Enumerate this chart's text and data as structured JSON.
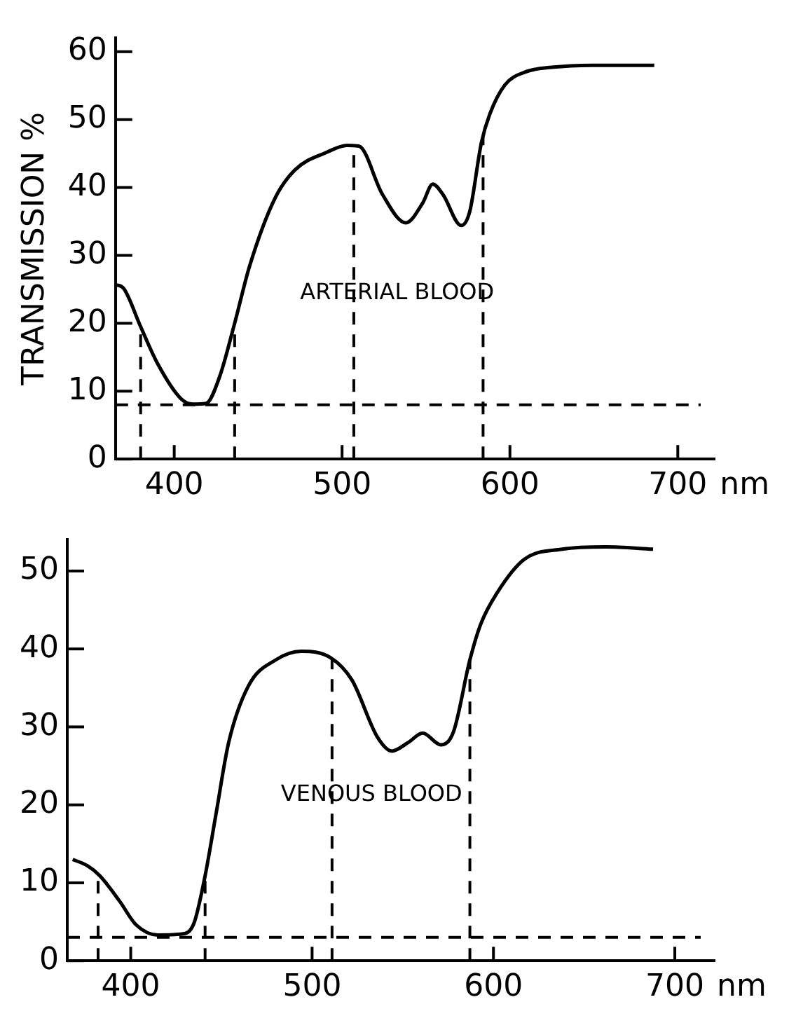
{
  "chart_data": [
    {
      "type": "line",
      "ylabel": "TRANSMISSION %",
      "xlabel": "nm",
      "annotations": [
        "ARTERIAL BLOOD"
      ],
      "marker": "none",
      "line_style": "solid",
      "color": "#000000",
      "legend": false,
      "x": [
        365,
        370,
        380,
        390,
        404,
        411,
        419,
        427,
        436,
        445,
        460,
        472,
        491,
        503,
        510,
        524,
        538,
        548,
        554,
        560,
        571,
        576,
        583,
        588,
        597,
        609,
        625,
        649,
        686
      ],
      "values": [
        25.7,
        25.1,
        19.5,
        14.1,
        8.9,
        8.1,
        8.2,
        12.1,
        20,
        28.5,
        38.4,
        42.6,
        45.2,
        46.2,
        46.1,
        39,
        34.8,
        37.7,
        40.5,
        39,
        34.4,
        36.4,
        46.6,
        50.8,
        55.1,
        57,
        57.7,
        58,
        58
      ],
      "xlim": [
        365,
        722
      ],
      "xticks": [
        400,
        500,
        600,
        700
      ],
      "ylim": [
        0,
        62
      ],
      "yticks": [
        0,
        10,
        20,
        30,
        40,
        50,
        60
      ],
      "ref_lines": [
        {
          "axis": "x",
          "value": 380,
          "color": "#000000",
          "line_style": "dashed"
        },
        {
          "axis": "x",
          "value": 436,
          "color": "#000000",
          "line_style": "dashed"
        },
        {
          "axis": "x",
          "value": 507,
          "color": "#000000",
          "line_style": "dashed"
        },
        {
          "axis": "x",
          "value": 584,
          "color": "#000000",
          "line_style": "dashed"
        },
        {
          "axis": "y",
          "value": 8,
          "color": "#000000",
          "line_style": "dashed"
        }
      ]
    },
    {
      "type": "line",
      "xlabel": "nm",
      "annotations": [
        "VENOUS BLOOD"
      ],
      "marker": "none",
      "line_style": "solid",
      "color": "#000000",
      "legend": false,
      "x": [
        368,
        376,
        383,
        394,
        403,
        415,
        430,
        435,
        441,
        447,
        454,
        465,
        480,
        494,
        510,
        522,
        536,
        544,
        553,
        561,
        571,
        578,
        587,
        593,
        602,
        617,
        638,
        662,
        688
      ],
      "values": [
        13,
        12.2,
        10.9,
        7.6,
        4.6,
        3.3,
        3.5,
        4.9,
        10.9,
        18.8,
        28,
        35.3,
        38.6,
        39.7,
        38.9,
        36,
        28.7,
        26.9,
        28,
        29.2,
        27.7,
        29.4,
        38.6,
        43.2,
        47.2,
        51.5,
        52.8,
        53.1,
        52.8
      ],
      "xlim": [
        365,
        722
      ],
      "xticks": [
        400,
        500,
        600,
        700
      ],
      "ylim": [
        0,
        54
      ],
      "yticks": [
        0,
        10,
        20,
        30,
        40,
        50
      ],
      "ref_lines": [
        {
          "axis": "x",
          "value": 382,
          "color": "#000000",
          "line_style": "dashed"
        },
        {
          "axis": "x",
          "value": 441,
          "color": "#000000",
          "line_style": "dashed"
        },
        {
          "axis": "x",
          "value": 511,
          "color": "#000000",
          "line_style": "dashed"
        },
        {
          "axis": "x",
          "value": 587,
          "color": "#000000",
          "line_style": "dashed"
        },
        {
          "axis": "y",
          "value": 3,
          "color": "#000000",
          "line_style": "dashed"
        }
      ]
    }
  ]
}
